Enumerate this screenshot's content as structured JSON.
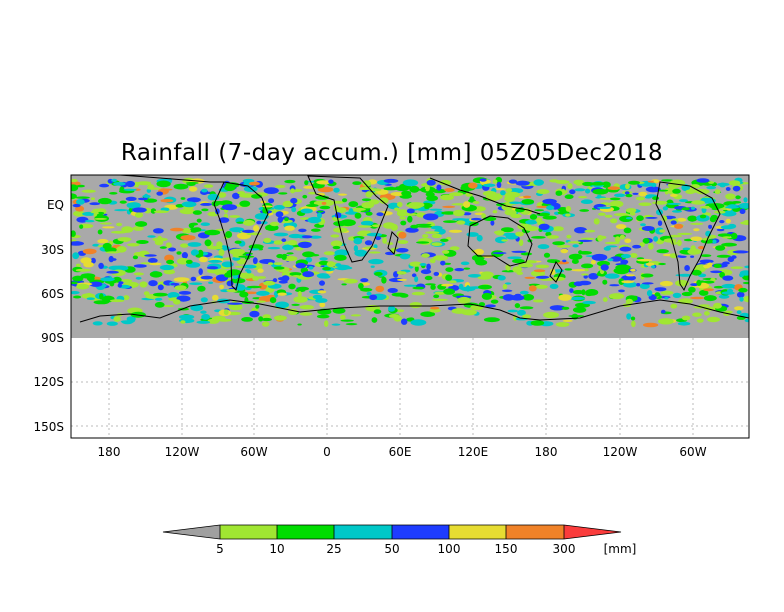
{
  "title": "Rainfall (7-day accum.) [mm] 05Z05Dec2018",
  "lat_ticks": [
    "EQ",
    "30S",
    "60S",
    "90S",
    "120S",
    "150S"
  ],
  "lon_ticks": [
    "180",
    "120W",
    "60W",
    "0",
    "60E",
    "120E",
    "180",
    "120W",
    "60W"
  ],
  "colorbar": {
    "labels": [
      "5",
      "10",
      "25",
      "50",
      "100",
      "150",
      "300"
    ],
    "unit": "[mm]",
    "colors": {
      "below_5": "#a0a0a0",
      "5_10": "#a0e632",
      "10_25": "#00dc00",
      "25_50": "#00c8c8",
      "50_100": "#1e3cff",
      "100_150": "#e6dc32",
      "150_300": "#f08228",
      "above_300": "#fa3c3c"
    }
  },
  "colors": {
    "ocean_no_rain": "#a9a9a9",
    "coastline": "#000000",
    "grid": "#bbbbbb"
  }
}
